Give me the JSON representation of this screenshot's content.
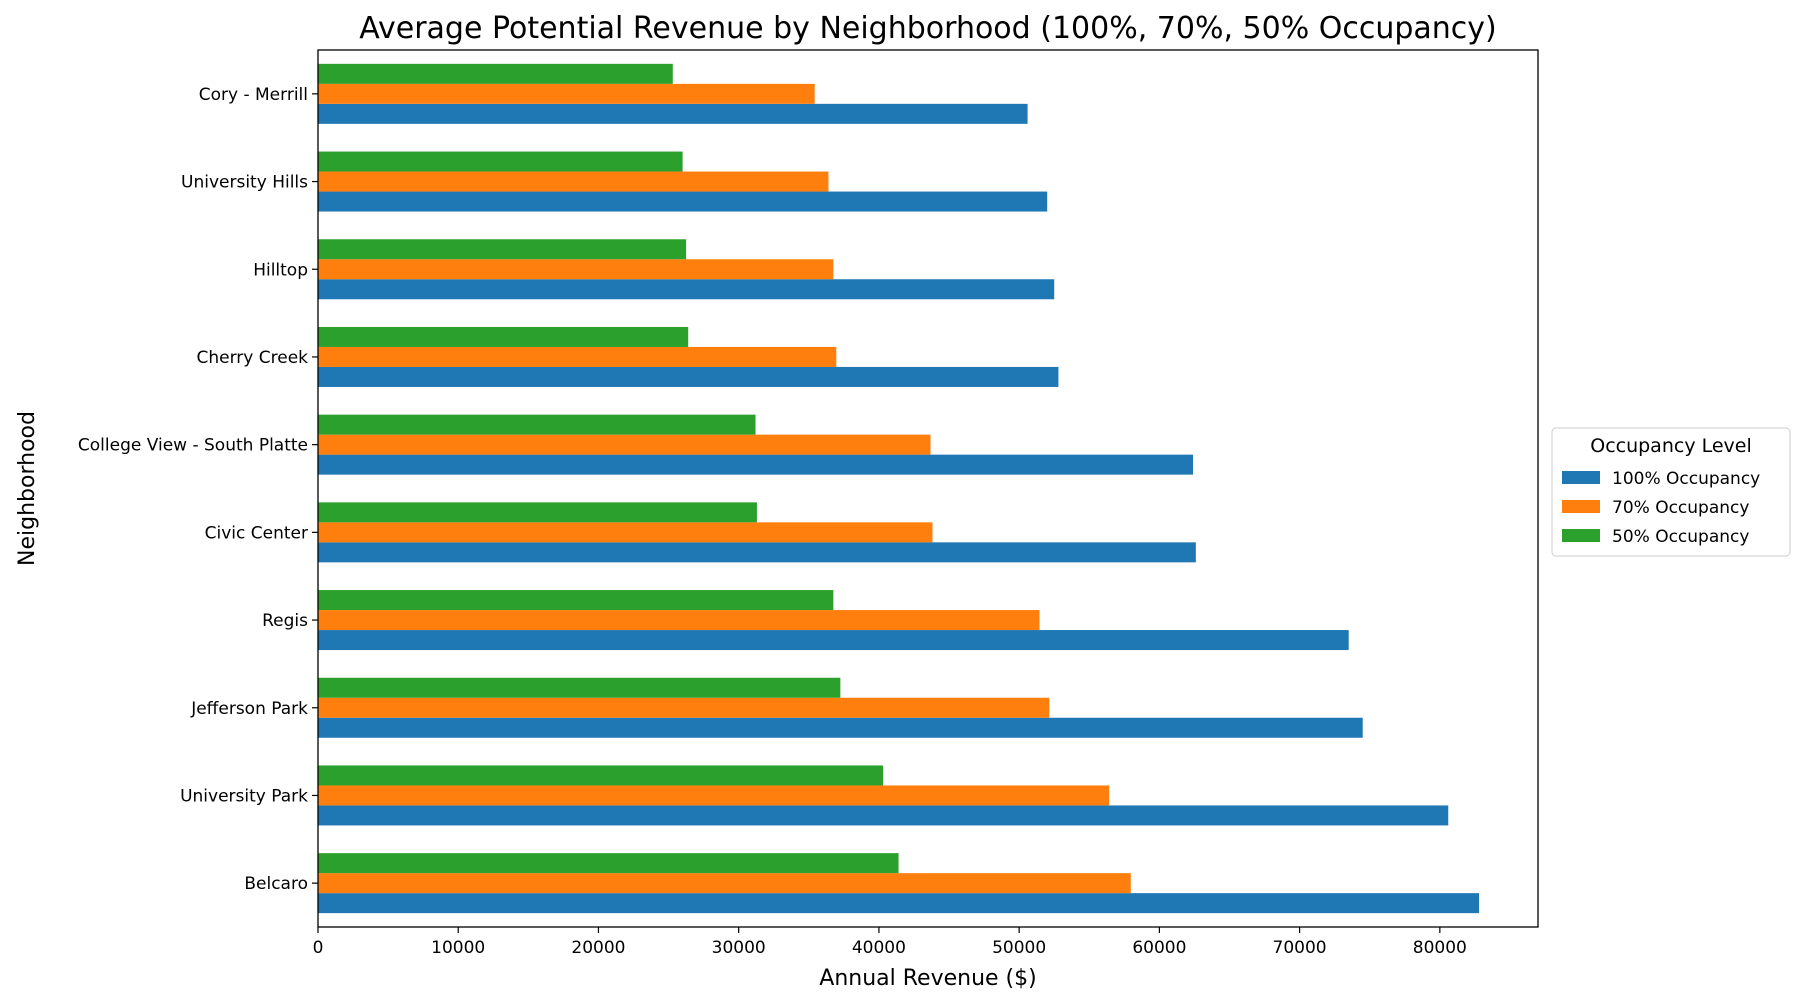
{
  "chart_data": {
    "type": "bar",
    "orientation": "horizontal",
    "title": "Average Potential Revenue by Neighborhood (100%, 70%, 50% Occupancy)",
    "xlabel": "Annual Revenue ($)",
    "ylabel": "Neighborhood",
    "xlim": [
      0,
      87000
    ],
    "xticks": [
      0,
      10000,
      20000,
      30000,
      40000,
      50000,
      60000,
      70000,
      80000
    ],
    "grid": false,
    "legend": {
      "title": "Occupancy Level",
      "placement": "right"
    },
    "categories": [
      "Belcaro",
      "University Park",
      "Jefferson Park",
      "Regis",
      "Civic Center",
      "College View - South Platte",
      "Cherry Creek",
      "Hilltop",
      "University Hills",
      "Cory - Merrill"
    ],
    "series": [
      {
        "name": "100% Occupancy",
        "color": "#1f77b4",
        "values": [
          82800,
          80600,
          74500,
          73500,
          62600,
          62400,
          52800,
          52500,
          52000,
          50600
        ]
      },
      {
        "name": "70% Occupancy",
        "color": "#ff7f0e",
        "values": [
          57960,
          56420,
          52150,
          51450,
          43820,
          43680,
          36960,
          36750,
          36400,
          35420
        ]
      },
      {
        "name": "50% Occupancy",
        "color": "#2ca02c",
        "values": [
          41400,
          40300,
          37250,
          36750,
          31300,
          31200,
          26400,
          26250,
          26000,
          25300
        ]
      }
    ]
  }
}
